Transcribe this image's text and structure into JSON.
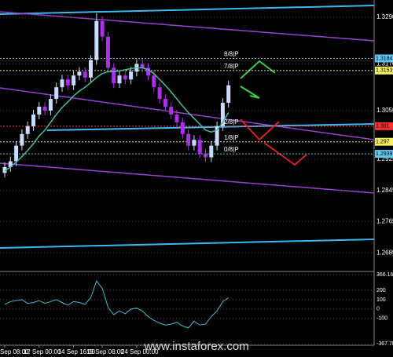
{
  "chart_data": {
    "type": "candlestick",
    "categories": [
      "Sep 08:00",
      null,
      null,
      null,
      null,
      null,
      "12 Sep 00:00",
      null,
      null,
      null,
      null,
      null,
      "14 Sep 16:00",
      null,
      null,
      null,
      null,
      "19 Sep 08:00",
      null,
      null,
      null,
      null,
      null,
      "24 Sep 00:00",
      null,
      null,
      null,
      null,
      null,
      null,
      null,
      null,
      null,
      null,
      null,
      null,
      null,
      null,
      null,
      null
    ],
    "ohlc": [
      [
        1.289,
        1.2917,
        1.2878,
        1.2905
      ],
      [
        1.2905,
        1.2932,
        1.2893,
        1.292
      ],
      [
        1.292,
        1.2972,
        1.2908,
        1.296
      ],
      [
        1.296,
        1.3002,
        1.2948,
        1.299
      ],
      [
        1.299,
        1.3022,
        1.2978,
        1.301
      ],
      [
        1.301,
        1.3052,
        1.2998,
        1.304
      ],
      [
        1.304,
        1.3072,
        1.3028,
        1.306
      ],
      [
        1.306,
        1.3072,
        1.3038,
        1.305
      ],
      [
        1.305,
        1.3092,
        1.3038,
        1.308
      ],
      [
        1.308,
        1.3122,
        1.3068,
        1.311
      ],
      [
        1.311,
        1.3142,
        1.3098,
        1.313
      ],
      [
        1.313,
        1.3142,
        1.3103,
        1.3115
      ],
      [
        1.3115,
        1.3152,
        1.3103,
        1.314
      ],
      [
        1.314,
        1.3162,
        1.3128,
        1.315
      ],
      [
        1.315,
        1.3162,
        1.3123,
        1.3135
      ],
      [
        1.3135,
        1.3192,
        1.3123,
        1.318
      ],
      [
        1.318,
        1.33,
        1.3168,
        1.328
      ],
      [
        1.328,
        1.3292,
        1.3228,
        1.324
      ],
      [
        1.324,
        1.3252,
        1.3148,
        1.316
      ],
      [
        1.316,
        1.3172,
        1.3108,
        1.312
      ],
      [
        1.312,
        1.3152,
        1.3108,
        1.314
      ],
      [
        1.314,
        1.3152,
        1.3118,
        1.313
      ],
      [
        1.313,
        1.3162,
        1.3118,
        1.315
      ],
      [
        1.315,
        1.3182,
        1.3138,
        1.317
      ],
      [
        1.317,
        1.3182,
        1.3148,
        1.316
      ],
      [
        1.316,
        1.3172,
        1.3128,
        1.314
      ],
      [
        1.314,
        1.3152,
        1.3098,
        1.311
      ],
      [
        1.311,
        1.3122,
        1.3068,
        1.308
      ],
      [
        1.308,
        1.3092,
        1.3048,
        1.306
      ],
      [
        1.306,
        1.3072,
        1.3028,
        1.304
      ],
      [
        1.304,
        1.3052,
        1.3008,
        1.302
      ],
      [
        1.302,
        1.3032,
        1.2978,
        1.299
      ],
      [
        1.299,
        1.3002,
        1.2948,
        1.296
      ],
      [
        1.296,
        1.2987,
        1.2948,
        1.2975
      ],
      [
        1.2975,
        1.2987,
        1.2928,
        1.294
      ],
      [
        1.294,
        1.2952,
        1.2918,
        1.293
      ],
      [
        1.293,
        1.2972,
        1.2918,
        1.296
      ],
      [
        1.296,
        1.3022,
        1.2948,
        1.301
      ],
      [
        1.301,
        1.3082,
        1.2998,
        1.307
      ],
      [
        1.307,
        1.3127,
        1.3058,
        1.3115
      ]
    ],
    "up_color": "#c9dcff",
    "down_color": "#b02cf0",
    "series": [
      {
        "type": "line",
        "color": "#3fbfa0",
        "values": [
          1.2895,
          1.2905,
          1.2918,
          1.2932,
          1.2948,
          1.2965,
          1.2985,
          1.3,
          1.302,
          1.304,
          1.3058,
          1.3072,
          1.3088,
          1.31,
          1.311,
          1.3122,
          1.3135,
          1.3145,
          1.315,
          1.315,
          1.3152,
          1.3155,
          1.3158,
          1.316,
          1.316,
          1.3155,
          1.3145,
          1.313,
          1.3115,
          1.3098,
          1.308,
          1.3062,
          1.3045,
          1.303,
          1.3015,
          1.3,
          1.2995,
          1.3,
          1.302,
          1.3045
        ]
      }
    ],
    "ylim": [
      1.2639,
      1.3334
    ],
    "yticks": [
      {
        "value": 1.329,
        "label": "1.3290"
      },
      {
        "value": 1.317,
        "label": "1.3170"
      },
      {
        "value": 1.305,
        "label": "1.3050"
      },
      1.2925,
      1.2845,
      1.2765,
      1.2685
    ],
    "levels": [
      {
        "label": "8/8|P",
        "value": 1.3184,
        "color": "#5bc8f5"
      },
      {
        "label": "7/8|P",
        "value": 1.3153,
        "color": "#f5f05b"
      },
      {
        "label": "2/8|P",
        "value": 1.301,
        "color": "#ff3030"
      },
      {
        "label": "1/8|P",
        "value": 1.297,
        "color": "#f5f05b"
      },
      {
        "label": "0/8|P",
        "value": 1.2939,
        "color": "#5bc8f5"
      }
    ],
    "oscillator": {
      "color": "#3fbfd0",
      "ylim": [
        -367.789,
        366.161
      ],
      "yticks": [
        366.161,
        200,
        100,
        0,
        -100,
        -367.789
      ],
      "values": [
        50,
        80,
        90,
        100,
        60,
        70,
        90,
        60,
        80,
        100,
        70,
        40,
        80,
        70,
        50,
        120,
        300,
        220,
        20,
        -60,
        -20,
        -50,
        0,
        10,
        -20,
        -80,
        -120,
        -150,
        -170,
        -160,
        -140,
        -180,
        -200,
        -130,
        -170,
        -160,
        -80,
        -20,
        80,
        120
      ]
    },
    "watermark": "www.instaforex.com"
  }
}
